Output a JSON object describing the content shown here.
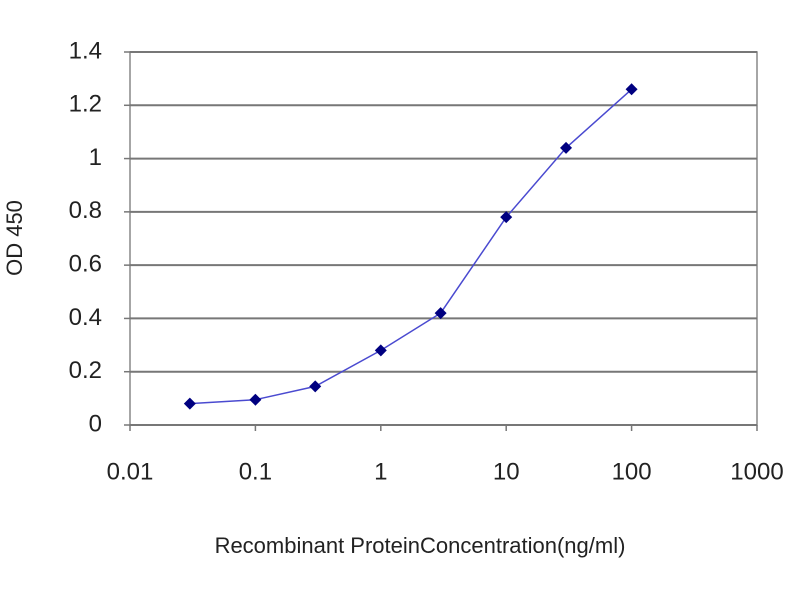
{
  "chart_data": {
    "type": "line",
    "x_label": "Recombinant ProteinConcentration(ng/ml)",
    "y_label": "OD 450",
    "x_scale": "log",
    "grid": true,
    "x": [
      0.03,
      0.1,
      0.3,
      1,
      3,
      10,
      30,
      100
    ],
    "series": [
      {
        "color": "#4a4ad0",
        "marker_color": "#000080",
        "values": [
          0.08,
          0.095,
          0.145,
          0.28,
          0.42,
          0.78,
          1.04,
          1.26
        ]
      }
    ],
    "xlim": [
      0.01,
      1000
    ],
    "xticks": [
      0.01,
      0.1,
      1,
      10,
      100,
      1000
    ],
    "ylim": [
      0,
      1.4
    ],
    "yticks": [
      0,
      0.2,
      0.4,
      0.6,
      0.8,
      1,
      1.2,
      1.4
    ]
  }
}
